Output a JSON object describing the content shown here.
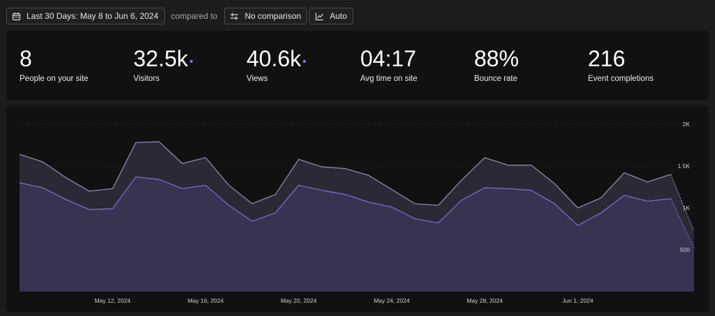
{
  "toolbar": {
    "date_range_label": "Last 30 Days: May 8 to Jun 6, 2024",
    "compared_to_label": "compared to",
    "comparison_label": "No comparison",
    "interval_label": "Auto",
    "icons": [
      "calendar-icon",
      "compare-arrows-icon",
      "line-chart-icon"
    ]
  },
  "stats": [
    {
      "value": "8",
      "label": "People on your site",
      "dot": false
    },
    {
      "value": "32.5k",
      "label": "Visitors",
      "dot": true
    },
    {
      "value": "40.6k",
      "label": "Views",
      "dot": true
    },
    {
      "value": "04:17",
      "label": "Avg time on site",
      "dot": false
    },
    {
      "value": "88%",
      "label": "Bounce rate",
      "dot": false
    },
    {
      "value": "216",
      "label": "Event completions",
      "dot": false
    }
  ],
  "colors": {
    "background": "#1c1c1c",
    "panel": "#111111",
    "accent_dot": "#8b7ae0",
    "views_fill": "#2c2937",
    "views_line": "#8a8aa6",
    "visitors_fill": "#3a3251",
    "visitors_line": "#7b6bc7"
  },
  "chart_data": {
    "type": "area",
    "x": [
      "May 8",
      "May 9",
      "May 10",
      "May 11",
      "May 12",
      "May 13",
      "May 14",
      "May 15",
      "May 16",
      "May 17",
      "May 18",
      "May 19",
      "May 20",
      "May 21",
      "May 22",
      "May 23",
      "May 24",
      "May 25",
      "May 26",
      "May 27",
      "May 28",
      "May 29",
      "May 30",
      "May 31",
      "Jun 1",
      "Jun 2",
      "Jun 3",
      "Jun 4",
      "Jun 5",
      "Jun 6"
    ],
    "x_tick_labels": [
      "May 12, 2024",
      "May 16, 2024",
      "May 20, 2024",
      "May 24, 2024",
      "May 28, 2024",
      "Jun 1, 2024"
    ],
    "x_tick_positions": [
      "May 12",
      "May 16",
      "May 20",
      "May 24",
      "May 28",
      "Jun 1"
    ],
    "y_tick_labels": [
      "500",
      "1K",
      "1.5K",
      "2K"
    ],
    "y_tick_values": [
      500,
      1000,
      1500,
      2000
    ],
    "ylim": [
      0,
      2000
    ],
    "partial_last_point": true,
    "series": [
      {
        "values": [
          1640,
          1550,
          1360,
          1200,
          1230,
          1780,
          1790,
          1530,
          1600,
          1270,
          1050,
          1160,
          1580,
          1490,
          1470,
          1390,
          1220,
          1050,
          1030,
          1330,
          1600,
          1510,
          1510,
          1290,
          1000,
          1120,
          1420,
          1310,
          1400,
          720
        ]
      },
      {
        "values": [
          1300,
          1240,
          1100,
          980,
          990,
          1370,
          1340,
          1230,
          1270,
          1030,
          840,
          940,
          1270,
          1210,
          1160,
          1070,
          1010,
          870,
          820,
          1090,
          1240,
          1230,
          1210,
          1050,
          790,
          940,
          1150,
          1080,
          1110,
          520
        ]
      }
    ],
    "grid": true,
    "legend": "none"
  }
}
